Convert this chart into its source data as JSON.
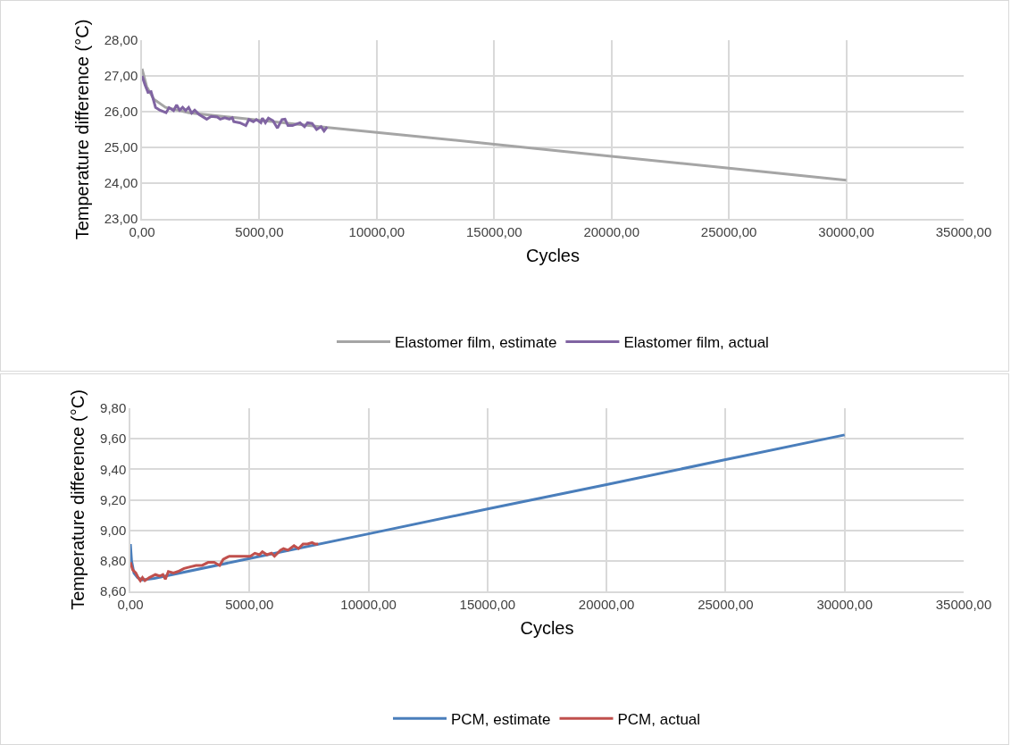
{
  "chart_data": [
    {
      "type": "line",
      "xlabel": "Cycles",
      "ylabel": "Temperature difference (°C)",
      "grid": true,
      "legend": "bottom",
      "marker": "none",
      "line_style": "solid",
      "xlim": [
        0,
        35000
      ],
      "xticks": [
        {
          "value": 0,
          "label": "0,00"
        },
        {
          "value": 5000,
          "label": "5000,00"
        },
        {
          "value": 10000,
          "label": "10000,00"
        },
        {
          "value": 15000,
          "label": "15000,00"
        },
        {
          "value": 20000,
          "label": "20000,00"
        },
        {
          "value": 25000,
          "label": "25000,00"
        },
        {
          "value": 30000,
          "label": "30000,00"
        },
        {
          "value": 35000,
          "label": "35000,00"
        }
      ],
      "ylim": [
        23,
        28
      ],
      "yticks": [
        {
          "value": 23,
          "label": "23,00"
        },
        {
          "value": 24,
          "label": "24,00"
        },
        {
          "value": 25,
          "label": "25,00"
        },
        {
          "value": 26,
          "label": "26,00"
        },
        {
          "value": 27,
          "label": "27,00"
        },
        {
          "value": 28,
          "label": "28,00"
        }
      ],
      "series": [
        {
          "name": "Elastomer film, estimate",
          "color": "#a5a5a5",
          "x": [
            0,
            200,
            500,
            1000,
            2000,
            4000,
            8000,
            10000,
            15000,
            20000,
            25000,
            30000
          ],
          "values": [
            27.2,
            26.7,
            26.35,
            26.12,
            25.97,
            25.83,
            25.55,
            25.42,
            25.09,
            24.75,
            24.42,
            24.08
          ]
        },
        {
          "name": "Elastomer film, actual",
          "color": "#8064a2",
          "x": [
            0,
            128,
            256,
            385,
            449,
            577,
            769,
            1026,
            1154,
            1346,
            1474,
            1603,
            1731,
            1859,
            1987,
            2115,
            2244,
            2436,
            2756,
            2949,
            3205,
            3333,
            3526,
            3718,
            3846,
            3910,
            4167,
            4423,
            4551,
            4744,
            4872,
            5064,
            5128,
            5256,
            5385,
            5577,
            5769,
            5962,
            6090,
            6218,
            6410,
            6731,
            6923,
            7051,
            7244,
            7436,
            7628,
            7756,
            7885
          ],
          "values": [
            27.0,
            26.75,
            26.54,
            26.56,
            26.42,
            26.12,
            26.04,
            25.97,
            26.11,
            26.03,
            26.19,
            26.04,
            26.12,
            26.03,
            26.12,
            25.96,
            26.04,
            25.92,
            25.79,
            25.87,
            25.85,
            25.79,
            25.83,
            25.79,
            25.83,
            25.72,
            25.69,
            25.61,
            25.78,
            25.72,
            25.78,
            25.69,
            25.82,
            25.69,
            25.82,
            25.75,
            25.54,
            25.78,
            25.79,
            25.61,
            25.61,
            25.69,
            25.58,
            25.69,
            25.67,
            25.5,
            25.58,
            25.46,
            25.57
          ]
        }
      ]
    },
    {
      "type": "line",
      "xlabel": "Cycles",
      "ylabel": "Temperature difference (°C)",
      "grid": true,
      "legend": "bottom",
      "marker": "none",
      "line_style": "solid",
      "xlim": [
        0,
        35000
      ],
      "xticks": [
        {
          "value": 0,
          "label": "0,00"
        },
        {
          "value": 5000,
          "label": "5000,00"
        },
        {
          "value": 10000,
          "label": "10000,00"
        },
        {
          "value": 15000,
          "label": "15000,00"
        },
        {
          "value": 20000,
          "label": "20000,00"
        },
        {
          "value": 25000,
          "label": "25000,00"
        },
        {
          "value": 30000,
          "label": "30000,00"
        },
        {
          "value": 35000,
          "label": "35000,00"
        }
      ],
      "ylim": [
        8.6,
        9.8
      ],
      "yticks": [
        {
          "value": 8.6,
          "label": "8,60"
        },
        {
          "value": 8.8,
          "label": "8,80"
        },
        {
          "value": 9.0,
          "label": "9,00"
        },
        {
          "value": 9.2,
          "label": "9,20"
        },
        {
          "value": 9.4,
          "label": "9,40"
        },
        {
          "value": 9.6,
          "label": "9,60"
        },
        {
          "value": 9.8,
          "label": "9,80"
        }
      ],
      "series": [
        {
          "name": "PCM, estimate",
          "color": "#4a7ebb",
          "x": [
            0,
            50,
            150,
            300,
            500,
            1000,
            5000,
            10000,
            15000,
            20000,
            25000,
            30000
          ],
          "values": [
            8.91,
            8.8,
            8.72,
            8.69,
            8.675,
            8.685,
            8.815,
            8.977,
            9.14,
            9.3,
            9.463,
            9.625
          ]
        },
        {
          "name": "PCM, actual",
          "color": "#c0504d",
          "x": [
            0,
            101,
            228,
            329,
            418,
            506,
            608,
            797,
            1051,
            1241,
            1367,
            1468,
            1595,
            1810,
            2000,
            2253,
            2506,
            2759,
            3013,
            3266,
            3519,
            3747,
            3899,
            4152,
            4430,
            4595,
            4848,
            5038,
            5228,
            5418,
            5544,
            5734,
            5924,
            6051,
            6304,
            6430,
            6620,
            6873,
            7063,
            7253,
            7443,
            7633,
            7759,
            7886
          ],
          "values": [
            8.79,
            8.74,
            8.72,
            8.69,
            8.67,
            8.69,
            8.67,
            8.69,
            8.71,
            8.7,
            8.71,
            8.68,
            8.73,
            8.72,
            8.73,
            8.75,
            8.76,
            8.77,
            8.77,
            8.79,
            8.79,
            8.77,
            8.81,
            8.83,
            8.83,
            8.83,
            8.83,
            8.83,
            8.85,
            8.84,
            8.86,
            8.84,
            8.85,
            8.83,
            8.87,
            8.88,
            8.87,
            8.9,
            8.88,
            8.91,
            8.91,
            8.92,
            8.91,
            8.91
          ]
        }
      ]
    }
  ]
}
